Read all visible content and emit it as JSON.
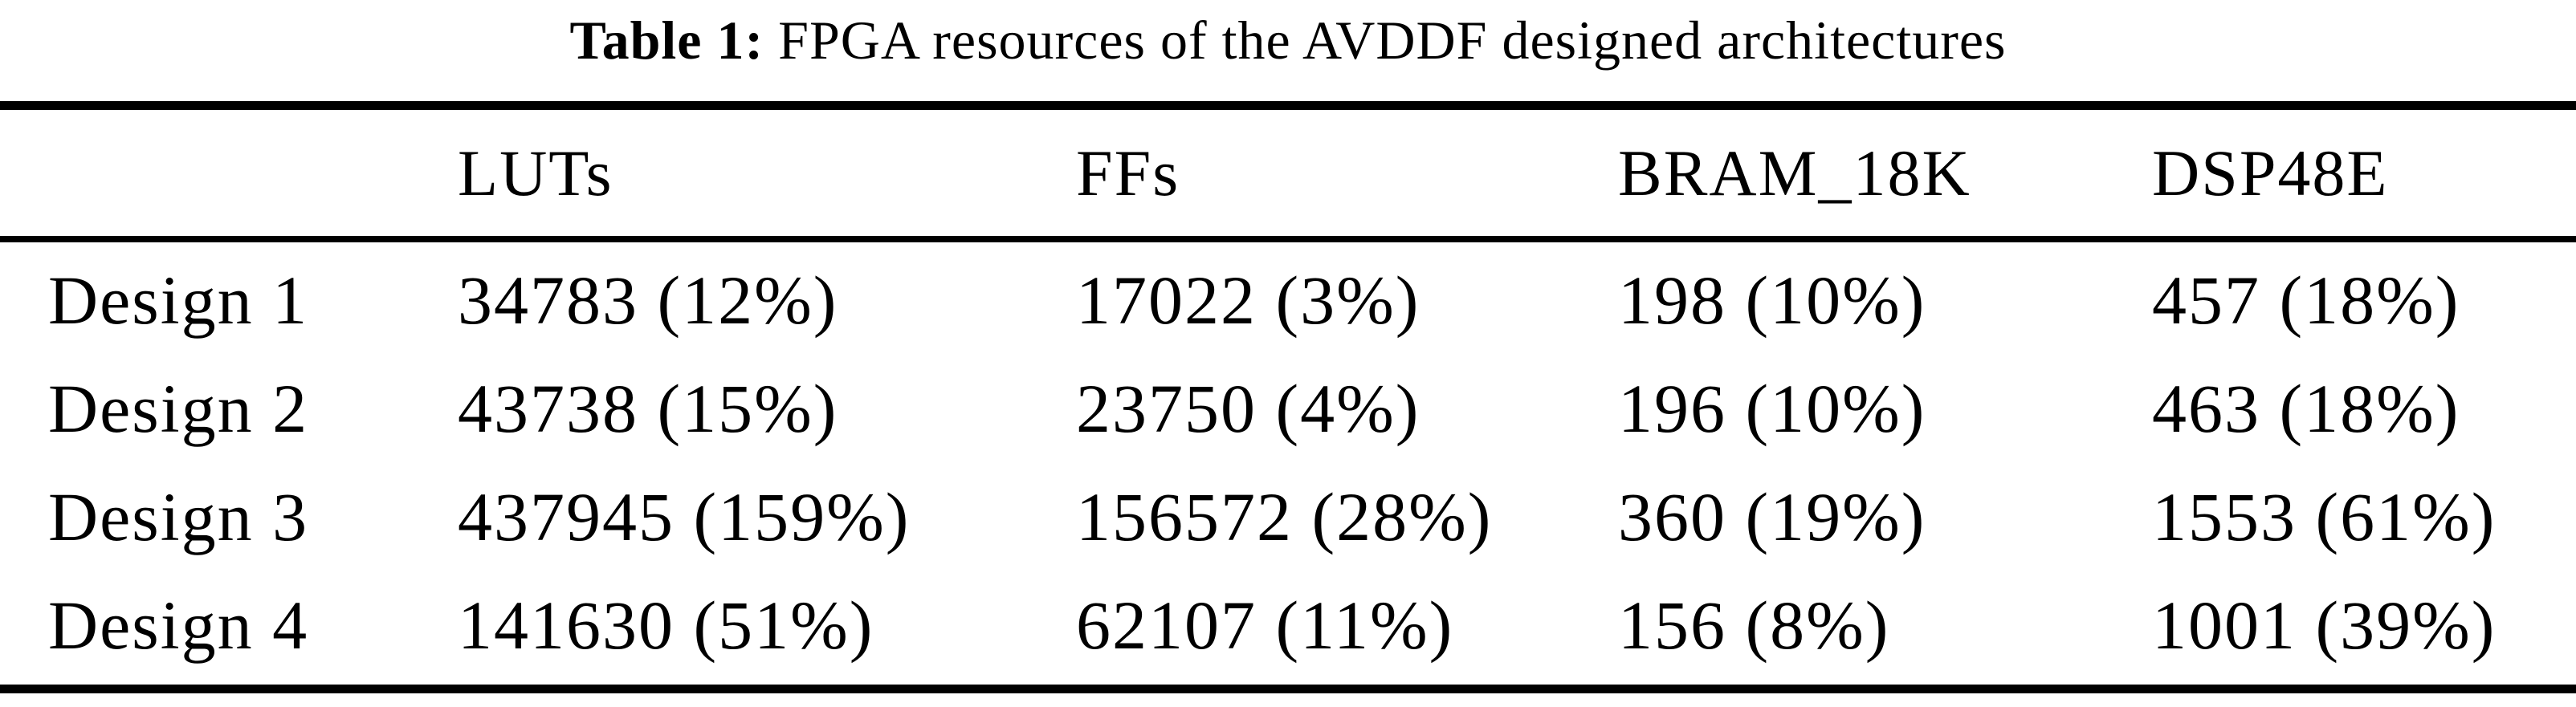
{
  "caption": {
    "label": "Table 1:",
    "text": " FPGA resources of the AVDDF designed architectures"
  },
  "table": {
    "headers": {
      "rowlabel": "",
      "luts": "LUTs",
      "ffs": "FFs",
      "bram": "BRAM_18K",
      "dsp": "DSP48E"
    },
    "rows": [
      {
        "label": "Design 1",
        "luts": "34783 (12%)",
        "ffs": "17022 (3%)",
        "bram": "198 (10%)",
        "dsp": "457 (18%)"
      },
      {
        "label": "Design 2",
        "luts": "43738 (15%)",
        "ffs": "23750 (4%)",
        "bram": "196 (10%)",
        "dsp": "463 (18%)"
      },
      {
        "label": "Design 3",
        "luts": "437945 (159%)",
        "ffs": "156572 (28%)",
        "bram": "360 (19%)",
        "dsp": "1553 (61%)"
      },
      {
        "label": "Design 4",
        "luts": "141630 (51%)",
        "ffs": "62107 (11%)",
        "bram": "156 (8%)",
        "dsp": "1001 (39%)"
      }
    ]
  },
  "colors": {
    "text": "#000000",
    "background": "#ffffff"
  }
}
